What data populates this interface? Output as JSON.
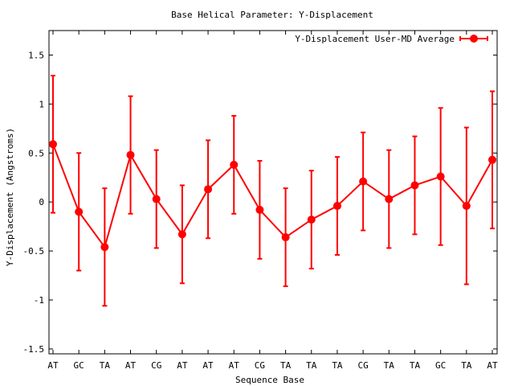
{
  "chart_data": {
    "type": "line",
    "title": "Base  Helical Parameter: Y-Displacement",
    "xlabel": "Sequence Base",
    "ylabel": "Y-Displacement (Angstroms)",
    "ylim": [
      -1.55,
      1.75
    ],
    "yticks": [
      {
        "value": 1.5,
        "label": "1.5"
      },
      {
        "value": 1,
        "label": "1"
      },
      {
        "value": 0.5,
        "label": "0.5"
      },
      {
        "value": 0,
        "label": "0"
      },
      {
        "value": -0.5,
        "label": "-0.5"
      },
      {
        "value": -1,
        "label": "-1"
      },
      {
        "value": -1.5,
        "label": "-1.5"
      }
    ],
    "categories": [
      "AT",
      "GC",
      "TA",
      "AT",
      "CG",
      "AT",
      "AT",
      "AT",
      "CG",
      "TA",
      "TA",
      "TA",
      "CG",
      "TA",
      "TA",
      "GC",
      "TA",
      "AT"
    ],
    "series": [
      {
        "name": "Y-Displacement User-MD Average",
        "color": "#ff0000",
        "values": [
          0.59,
          -0.1,
          -0.46,
          0.48,
          0.03,
          -0.33,
          0.13,
          0.38,
          -0.08,
          -0.36,
          -0.18,
          -0.04,
          0.21,
          0.03,
          0.17,
          0.26,
          -0.04,
          0.43
        ],
        "errors": [
          0.7,
          0.6,
          0.6,
          0.6,
          0.5,
          0.5,
          0.5,
          0.5,
          0.5,
          0.5,
          0.5,
          0.5,
          0.5,
          0.5,
          0.5,
          0.7,
          0.8,
          0.7
        ]
      }
    ],
    "legend_position": "top-right",
    "grid": false
  }
}
